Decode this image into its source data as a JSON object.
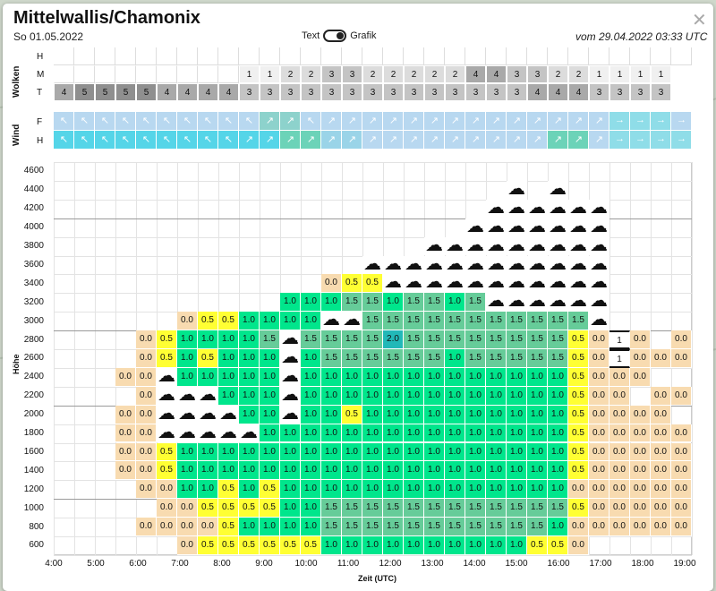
{
  "window": {
    "title": "Mittelwallis/Chamonix",
    "date": "So 01.05.2022",
    "toggle_text": "Text",
    "toggle_graphic": "Grafik",
    "issued": "vom 29.04.2022 03:33 UTC",
    "close_icon": "close-icon"
  },
  "clouds": {
    "label": "Wolken",
    "rows": [
      "H",
      "M",
      "T"
    ],
    "M": [
      "",
      "",
      "",
      "",
      "",
      "",
      "",
      "",
      "",
      "1",
      "1",
      "2",
      "2",
      "3",
      "3",
      "2",
      "2",
      "2",
      "2",
      "2",
      "4",
      "4",
      "3",
      "3",
      "2",
      "2",
      "1",
      "1",
      "1",
      "1"
    ],
    "T": [
      "4",
      "5",
      "5",
      "5",
      "5",
      "4",
      "4",
      "4",
      "4",
      "3",
      "3",
      "3",
      "3",
      "3",
      "3",
      "3",
      "3",
      "3",
      "3",
      "3",
      "3",
      "3",
      "3",
      "4",
      "4",
      "4",
      "3",
      "3",
      "3",
      "3"
    ]
  },
  "wind": {
    "label": "Wind",
    "rows": [
      "F",
      "H"
    ]
  },
  "chart_data": {
    "type": "heatmap",
    "ylabel": "Höhe",
    "xlabel": "Zeit (UTC)",
    "x_ticks": [
      "4:00",
      "5:00",
      "6:00",
      "7:00",
      "8:00",
      "9:00",
      "10:00",
      "11:00",
      "12:00",
      "13:00",
      "14:00",
      "15:00",
      "16:00",
      "17:00",
      "18:00",
      "19:00"
    ],
    "y_ticks": [
      "600",
      "800",
      "1000",
      "1200",
      "1400",
      "1600",
      "1800",
      "2000",
      "2200",
      "2400",
      "2600",
      "2800",
      "3000",
      "3200",
      "3400",
      "3600",
      "3800",
      "4000",
      "4200",
      "4400",
      "4600"
    ],
    "legend_colors": {
      "0.0": "#f8dbb0",
      "0.5": "#ffff33",
      "1.0": "#00e68c",
      "1.5": "#66cc99",
      "2.0": "#22b8b8",
      "cloud": "#ffffff"
    },
    "time_columns": [
      "4:00",
      "4:30",
      "5:00",
      "5:30",
      "6:00",
      "6:30",
      "7:00",
      "7:30",
      "8:00",
      "8:30",
      "9:00",
      "9:30",
      "10:00",
      "10:30",
      "11:00",
      "11:30",
      "12:00",
      "12:30",
      "13:00",
      "13:30",
      "14:00",
      "14:30",
      "15:00",
      "15:30",
      "16:00",
      "16:30",
      "17:00",
      "17:30",
      "18:00",
      "18:30",
      "19:00",
      "19:30"
    ],
    "levels_m": [
      4600,
      4400,
      4200,
      4000,
      3800,
      3600,
      3400,
      3200,
      3000,
      2800,
      2600,
      2400,
      2200,
      2000,
      1800,
      1600,
      1400,
      1200,
      1000,
      800,
      600
    ],
    "cloud_marker": "☁",
    "values": [
      [
        "",
        "",
        "",
        "",
        "",
        "",
        "",
        "",
        "",
        "",
        "",
        "",
        "",
        "",
        "",
        "",
        "",
        "",
        "",
        "",
        "",
        "",
        "",
        "",
        "",
        "",
        "",
        "",
        "",
        "",
        "",
        ""
      ],
      [
        "",
        "",
        "",
        "",
        "",
        "",
        "",
        "",
        "",
        "",
        "",
        "",
        "",
        "",
        "",
        "",
        "",
        "",
        "",
        "",
        "",
        "",
        "C",
        "",
        "C",
        "",
        "",
        "",
        "",
        "",
        "",
        ""
      ],
      [
        "",
        "",
        "",
        "",
        "",
        "",
        "",
        "",
        "",
        "",
        "",
        "",
        "",
        "",
        "",
        "",
        "",
        "",
        "",
        "",
        "",
        "C",
        "C",
        "C",
        "C",
        "C",
        "C",
        "",
        "",
        "",
        "",
        ""
      ],
      [
        "",
        "",
        "",
        "",
        "",
        "",
        "",
        "",
        "",
        "",
        "",
        "",
        "",
        "",
        "",
        "",
        "",
        "",
        "",
        "",
        "C",
        "C",
        "C",
        "C",
        "C",
        "C",
        "C",
        "",
        "",
        "",
        "",
        ""
      ],
      [
        "",
        "",
        "",
        "",
        "",
        "",
        "",
        "",
        "",
        "",
        "",
        "",
        "",
        "",
        "",
        "",
        "",
        "",
        "C",
        "C",
        "C",
        "C",
        "C",
        "C",
        "C",
        "C",
        "C",
        "",
        "",
        "",
        "",
        ""
      ],
      [
        "",
        "",
        "",
        "",
        "",
        "",
        "",
        "",
        "",
        "",
        "",
        "",
        "",
        "",
        "",
        "C",
        "C",
        "C",
        "C",
        "C",
        "C",
        "C",
        "C",
        "C",
        "C",
        "C",
        "C",
        "",
        "",
        "",
        "",
        ""
      ],
      [
        "",
        "",
        "",
        "",
        "",
        "",
        "",
        "",
        "",
        "",
        "",
        "",
        "",
        "0.0",
        "0.5",
        "0.5",
        "C",
        "C",
        "C",
        "C",
        "C",
        "C",
        "C",
        "C",
        "C",
        "C",
        "C",
        "",
        "",
        "",
        "",
        ""
      ],
      [
        "",
        "",
        "",
        "",
        "",
        "",
        "",
        "",
        "",
        "",
        "",
        "1.0",
        "1.0",
        "1.0",
        "1.5",
        "1.5",
        "1.0",
        "1.5",
        "1.5",
        "1.0",
        "1.5",
        "C",
        "C",
        "C",
        "C",
        "C",
        "C",
        "",
        "",
        "",
        "",
        ""
      ],
      [
        "",
        "",
        "",
        "",
        "",
        "",
        "0.0",
        "0.5",
        "0.5",
        "1.0",
        "1.0",
        "1.0",
        "1.0",
        "C",
        "C",
        "1.5",
        "1.5",
        "1.5",
        "1.5",
        "1.5",
        "1.5",
        "1.5",
        "1.5",
        "1.5",
        "1.5",
        "1.5",
        "C",
        "",
        "",
        "",
        "",
        ""
      ],
      [
        "",
        "",
        "",
        "",
        "0.0",
        "0.5",
        "1.0",
        "1.0",
        "1.0",
        "1.0",
        "1.5",
        "C",
        "1.5",
        "1.5",
        "1.5",
        "1.5",
        "2.0",
        "1.5",
        "1.5",
        "1.5",
        "1.5",
        "1.5",
        "1.5",
        "1.5",
        "1.5",
        "0.5",
        "0.0",
        "1",
        "0.0",
        "",
        "0.0",
        ""
      ],
      [
        "",
        "",
        "",
        "",
        "0.0",
        "0.5",
        "1.0",
        "0.5",
        "1.0",
        "1.0",
        "1.0",
        "C",
        "1.0",
        "1.5",
        "1.5",
        "1.5",
        "1.5",
        "1.5",
        "1.5",
        "1.0",
        "1.5",
        "1.5",
        "1.5",
        "1.5",
        "1.5",
        "0.5",
        "0.0",
        "1",
        "0.0",
        "0.0",
        "0.0",
        ""
      ],
      [
        "",
        "",
        "",
        "0.0",
        "0.0",
        "C",
        "1.0",
        "1.0",
        "1.0",
        "1.0",
        "1.0",
        "C",
        "1.0",
        "1.0",
        "1.0",
        "1.0",
        "1.0",
        "1.0",
        "1.0",
        "1.0",
        "1.0",
        "1.0",
        "1.0",
        "1.0",
        "1.0",
        "0.5",
        "0.0",
        "0.0",
        "0.0",
        "",
        "",
        ""
      ],
      [
        "",
        "",
        "",
        "",
        "0.0",
        "C",
        "C",
        "C",
        "1.0",
        "1.0",
        "1.0",
        "C",
        "1.0",
        "1.0",
        "1.0",
        "1.0",
        "1.0",
        "1.0",
        "1.0",
        "1.0",
        "1.0",
        "1.0",
        "1.0",
        "1.0",
        "1.0",
        "0.5",
        "0.0",
        "0.0",
        "",
        "0.0",
        "0.0",
        ""
      ],
      [
        "",
        "",
        "",
        "0.0",
        "0.0",
        "C",
        "C",
        "C",
        "C",
        "1.0",
        "1.0",
        "C",
        "1.0",
        "1.0",
        "0.5",
        "1.0",
        "1.0",
        "1.0",
        "1.0",
        "1.0",
        "1.0",
        "1.0",
        "1.0",
        "1.0",
        "1.0",
        "0.5",
        "0.0",
        "0.0",
        "0.0",
        "0.0",
        "",
        ""
      ],
      [
        "",
        "",
        "",
        "0.0",
        "0.0",
        "C",
        "C",
        "C",
        "C",
        "C",
        "1.0",
        "1.0",
        "1.0",
        "1.0",
        "1.0",
        "1.0",
        "1.0",
        "1.0",
        "1.0",
        "1.0",
        "1.0",
        "1.0",
        "1.0",
        "1.0",
        "1.0",
        "0.5",
        "0.0",
        "0.0",
        "0.0",
        "0.0",
        "0.0",
        ""
      ],
      [
        "",
        "",
        "",
        "0.0",
        "0.0",
        "0.5",
        "1.0",
        "1.0",
        "1.0",
        "1.0",
        "1.0",
        "1.0",
        "1.0",
        "1.0",
        "1.0",
        "1.0",
        "1.0",
        "1.0",
        "1.0",
        "1.0",
        "1.0",
        "1.0",
        "1.0",
        "1.0",
        "1.0",
        "0.5",
        "0.0",
        "0.0",
        "0.0",
        "0.0",
        "0.0",
        ""
      ],
      [
        "",
        "",
        "",
        "0.0",
        "0.0",
        "0.5",
        "1.0",
        "1.0",
        "1.0",
        "1.0",
        "1.0",
        "1.0",
        "1.0",
        "1.0",
        "1.0",
        "1.0",
        "1.0",
        "1.0",
        "1.0",
        "1.0",
        "1.0",
        "1.0",
        "1.0",
        "1.0",
        "1.0",
        "0.5",
        "0.0",
        "0.0",
        "0.0",
        "0.0",
        "0.0",
        ""
      ],
      [
        "",
        "",
        "",
        "",
        "0.0",
        "0.0",
        "1.0",
        "1.0",
        "0.5",
        "1.0",
        "0.5",
        "1.0",
        "1.0",
        "1.0",
        "1.0",
        "1.0",
        "1.0",
        "1.0",
        "1.0",
        "1.0",
        "1.0",
        "1.0",
        "1.0",
        "1.0",
        "1.0",
        "0.0",
        "0.0",
        "0.0",
        "0.0",
        "0.0",
        "0.0",
        ""
      ],
      [
        "",
        "",
        "",
        "",
        "",
        "0.0",
        "0.0",
        "0.5",
        "0.5",
        "0.5",
        "0.5",
        "1.0",
        "1.0",
        "1.5",
        "1.5",
        "1.5",
        "1.5",
        "1.5",
        "1.5",
        "1.5",
        "1.5",
        "1.5",
        "1.5",
        "1.5",
        "1.5",
        "0.5",
        "0.0",
        "0.0",
        "0.0",
        "0.0",
        "0.0",
        ""
      ],
      [
        "",
        "",
        "",
        "",
        "0.0",
        "0.0",
        "0.0",
        "0.0",
        "0.5",
        "1.0",
        "1.0",
        "1.0",
        "1.0",
        "1.5",
        "1.5",
        "1.5",
        "1.5",
        "1.5",
        "1.5",
        "1.5",
        "1.5",
        "1.5",
        "1.5",
        "1.5",
        "1.0",
        "0.0",
        "0.0",
        "0.0",
        "0.0",
        "0.0",
        "0.0",
        ""
      ],
      [
        "",
        "",
        "",
        "",
        "",
        "",
        "0.0",
        "0.5",
        "0.5",
        "0.5",
        "0.5",
        "0.5",
        "0.5",
        "1.0",
        "1.0",
        "1.0",
        "1.0",
        "1.0",
        "1.0",
        "1.0",
        "1.0",
        "1.0",
        "1.0",
        "0.5",
        "0.5",
        "0.0",
        "",
        "",
        "",
        "",
        "",
        ""
      ]
    ]
  }
}
